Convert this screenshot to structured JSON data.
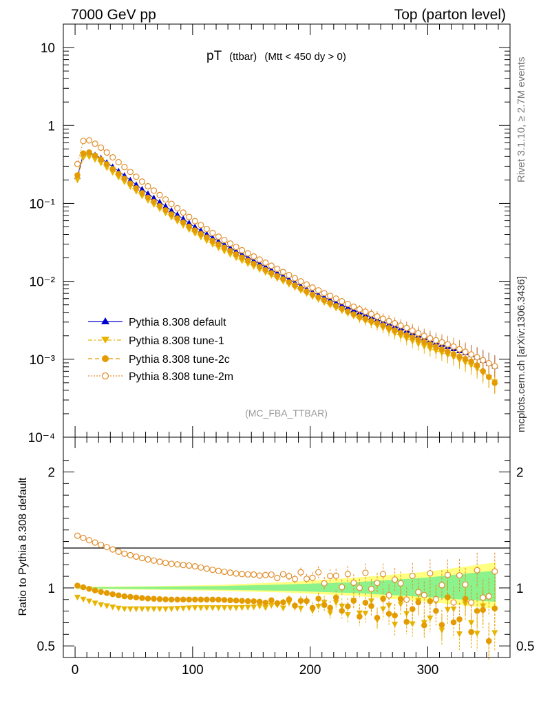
{
  "header": {
    "left": "7000 GeV pp",
    "right": "Top (parton level)"
  },
  "side_labels": {
    "rivet": "Rivet 3.1.10, ≥ 2.7M events",
    "mcplots": "mcplots.cern.ch [arXiv:1306.3436]"
  },
  "main_title": {
    "main": "pT",
    "sub": "(ttbar)",
    "cut": "(Mtt < 450 dy > 0)"
  },
  "analysis_tag": "(MC_FBA_TTBAR)",
  "colors": {
    "default": "#0000cc",
    "tune1": "#e8b400",
    "tune2c": "#e39b00",
    "tune2m": "#e08e2b",
    "band_yellow": "#ffff80",
    "band_green": "#8cf28c"
  },
  "chart_data": [
    {
      "type": "scatter",
      "panel": "main",
      "yscale": "log",
      "xlim": [
        -10,
        370
      ],
      "ylim": [
        0.0001,
        20
      ],
      "x_ticks": [
        "0",
        "100",
        "200",
        "300"
      ],
      "y_ticks": [
        "10",
        "1",
        "10⁻¹",
        "10⁻²",
        "10⁻³",
        "10⁻⁴"
      ],
      "legend_position": "bottom-left",
      "series": [
        {
          "name": "Pythia 8.308 default",
          "points": [
            [
              2,
              0.22
            ],
            [
              6,
              0.42
            ],
            [
              10,
              0.46
            ],
            [
              20,
              0.4
            ],
            [
              40,
              0.24
            ],
            [
              60,
              0.14
            ],
            [
              80,
              0.085
            ],
            [
              100,
              0.052
            ],
            [
              120,
              0.034
            ],
            [
              140,
              0.023
            ],
            [
              160,
              0.016
            ],
            [
              180,
              0.011
            ],
            [
              200,
              0.0075
            ],
            [
              220,
              0.0055
            ],
            [
              240,
              0.0041
            ],
            [
              260,
              0.0031
            ],
            [
              280,
              0.0024
            ],
            [
              300,
              0.0018
            ],
            [
              320,
              0.0014
            ],
            [
              340,
              0.0011
            ],
            [
              358,
              0.0008
            ]
          ]
        },
        {
          "name": "Pythia 8.308 tune-1",
          "points": [
            [
              2,
              0.2
            ],
            [
              6,
              0.38
            ],
            [
              10,
              0.41
            ],
            [
              20,
              0.35
            ],
            [
              40,
              0.2
            ],
            [
              60,
              0.115
            ],
            [
              80,
              0.07
            ],
            [
              100,
              0.043
            ],
            [
              120,
              0.028
            ],
            [
              140,
              0.019
            ],
            [
              160,
              0.0135
            ],
            [
              180,
              0.0095
            ],
            [
              200,
              0.0066
            ],
            [
              220,
              0.0047
            ],
            [
              240,
              0.0034
            ],
            [
              260,
              0.0026
            ],
            [
              280,
              0.0019
            ],
            [
              300,
              0.0014
            ],
            [
              320,
              0.0011
            ],
            [
              340,
              0.0008
            ],
            [
              358,
              0.0005
            ]
          ]
        },
        {
          "name": "Pythia 8.308 tune-2c",
          "points": [
            [
              2,
              0.23
            ],
            [
              6,
              0.43
            ],
            [
              10,
              0.47
            ],
            [
              20,
              0.39
            ],
            [
              40,
              0.22
            ],
            [
              60,
              0.125
            ],
            [
              80,
              0.076
            ],
            [
              100,
              0.047
            ],
            [
              120,
              0.031
            ],
            [
              140,
              0.021
            ],
            [
              160,
              0.0145
            ],
            [
              180,
              0.0101
            ],
            [
              200,
              0.007
            ],
            [
              220,
              0.005
            ],
            [
              240,
              0.0036
            ],
            [
              260,
              0.0028
            ],
            [
              280,
              0.0021
            ],
            [
              300,
              0.0016
            ],
            [
              320,
              0.0012
            ],
            [
              340,
              0.0009
            ],
            [
              358,
              0.00048
            ]
          ]
        },
        {
          "name": "Pythia 8.308 tune-2m",
          "points": [
            [
              2,
              0.32
            ],
            [
              6,
              0.62
            ],
            [
              10,
              0.67
            ],
            [
              20,
              0.55
            ],
            [
              40,
              0.31
            ],
            [
              60,
              0.175
            ],
            [
              80,
              0.104
            ],
            [
              100,
              0.062
            ],
            [
              120,
              0.039
            ],
            [
              140,
              0.026
            ],
            [
              160,
              0.018
            ],
            [
              180,
              0.0125
            ],
            [
              200,
              0.0086
            ],
            [
              220,
              0.0062
            ],
            [
              240,
              0.0045
            ],
            [
              260,
              0.0034
            ],
            [
              280,
              0.0026
            ],
            [
              300,
              0.0019
            ],
            [
              320,
              0.0015
            ],
            [
              340,
              0.0011
            ],
            [
              358,
              0.0008
            ]
          ]
        }
      ]
    },
    {
      "type": "scatter",
      "panel": "ratio",
      "ylabel": "Ratio to Pythia 8.308 default",
      "xlim": [
        -10,
        370
      ],
      "ylim": [
        0.4,
        2.3
      ],
      "x_ticks": [
        "0",
        "100",
        "200",
        "300"
      ],
      "y_ticks": [
        "2",
        "1",
        "0.5"
      ],
      "series": [
        {
          "name": "Pythia 8.308 tune-1",
          "points": [
            [
              2,
              0.92
            ],
            [
              20,
              0.86
            ],
            [
              40,
              0.82
            ],
            [
              60,
              0.82
            ],
            [
              80,
              0.82
            ],
            [
              100,
              0.83
            ],
            [
              120,
              0.83
            ],
            [
              140,
              0.83
            ],
            [
              160,
              0.84
            ],
            [
              180,
              0.85
            ],
            [
              200,
              0.84
            ],
            [
              220,
              0.84
            ],
            [
              240,
              0.82
            ],
            [
              260,
              0.8
            ],
            [
              280,
              0.78
            ],
            [
              300,
              0.77
            ],
            [
              320,
              0.76
            ],
            [
              340,
              0.72
            ],
            [
              358,
              0.62
            ]
          ]
        },
        {
          "name": "Pythia 8.308 tune-2c",
          "points": [
            [
              2,
              1.02
            ],
            [
              20,
              0.97
            ],
            [
              40,
              0.93
            ],
            [
              60,
              0.91
            ],
            [
              80,
              0.9
            ],
            [
              100,
              0.9
            ],
            [
              120,
              0.9
            ],
            [
              140,
              0.89
            ],
            [
              160,
              0.88
            ],
            [
              180,
              0.88
            ],
            [
              200,
              0.87
            ],
            [
              220,
              0.86
            ],
            [
              240,
              0.83
            ],
            [
              260,
              0.82
            ],
            [
              280,
              0.8
            ],
            [
              300,
              0.8
            ],
            [
              320,
              0.78
            ],
            [
              340,
              0.76
            ],
            [
              358,
              0.68
            ]
          ]
        },
        {
          "name": "Pythia 8.308 tune-2m",
          "points": [
            [
              2,
              1.45
            ],
            [
              20,
              1.38
            ],
            [
              40,
              1.3
            ],
            [
              60,
              1.25
            ],
            [
              80,
              1.21
            ],
            [
              100,
              1.19
            ],
            [
              120,
              1.15
            ],
            [
              140,
              1.12
            ],
            [
              160,
              1.11
            ],
            [
              180,
              1.1
            ],
            [
              200,
              1.1
            ],
            [
              220,
              1.08
            ],
            [
              240,
              1.05
            ],
            [
              260,
              1.05
            ],
            [
              280,
              1.0
            ],
            [
              300,
              1.0
            ],
            [
              320,
              1.02
            ],
            [
              340,
              1.0
            ],
            [
              358,
              0.98
            ]
          ]
        }
      ],
      "band": {
        "x": [
          2,
          60,
          120,
          180,
          240,
          300,
          358
        ],
        "yellow_low": [
          0.99,
          0.985,
          0.975,
          0.96,
          0.93,
          0.88,
          0.82
        ],
        "yellow_high": [
          1.01,
          1.015,
          1.025,
          1.05,
          1.09,
          1.14,
          1.22
        ],
        "green_low": [
          0.995,
          0.99,
          0.985,
          0.975,
          0.955,
          0.92,
          0.88
        ],
        "green_high": [
          1.005,
          1.01,
          1.015,
          1.03,
          1.05,
          1.09,
          1.15
        ]
      }
    }
  ]
}
